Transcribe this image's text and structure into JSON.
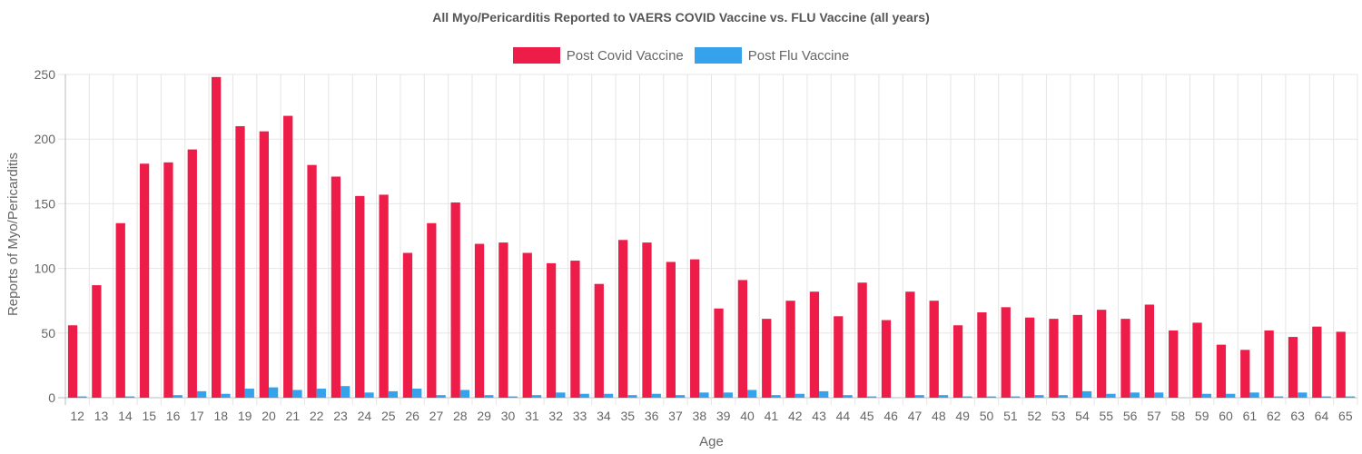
{
  "chart_data": {
    "type": "bar",
    "title": "All Myo/Pericarditis Reported to VAERS COVID Vaccine vs. FLU Vaccine (all years)",
    "xlabel": "Age",
    "ylabel": "Reports of Myo/Pericarditis",
    "ylim": [
      0,
      250
    ],
    "yticks": [
      0,
      50,
      100,
      150,
      200,
      250
    ],
    "grid": true,
    "legend_position": "top-center",
    "categories": [
      "12",
      "13",
      "14",
      "15",
      "16",
      "17",
      "18",
      "19",
      "20",
      "21",
      "22",
      "23",
      "24",
      "25",
      "26",
      "27",
      "28",
      "29",
      "30",
      "31",
      "32",
      "33",
      "34",
      "35",
      "36",
      "37",
      "38",
      "39",
      "40",
      "41",
      "42",
      "43",
      "44",
      "45",
      "46",
      "47",
      "48",
      "49",
      "50",
      "51",
      "52",
      "53",
      "54",
      "55",
      "56",
      "57",
      "58",
      "59",
      "60",
      "61",
      "62",
      "63",
      "64",
      "65"
    ],
    "series": [
      {
        "name": "Post Covid Vaccine",
        "color": "#ee1c49",
        "values": [
          56,
          87,
          135,
          181,
          182,
          192,
          248,
          210,
          206,
          218,
          180,
          171,
          156,
          157,
          112,
          135,
          151,
          119,
          120,
          112,
          104,
          106,
          88,
          122,
          120,
          105,
          107,
          69,
          91,
          61,
          75,
          82,
          63,
          89,
          60,
          82,
          75,
          56,
          66,
          70,
          62,
          61,
          64,
          68,
          61,
          72,
          52,
          58,
          41,
          37,
          52,
          47,
          55,
          51
        ]
      },
      {
        "name": "Post Flu Vaccine",
        "color": "#36a2eb",
        "values": [
          1,
          0,
          1,
          0,
          2,
          5,
          3,
          7,
          8,
          6,
          7,
          9,
          4,
          5,
          7,
          2,
          6,
          2,
          1,
          2,
          4,
          3,
          3,
          2,
          3,
          2,
          4,
          4,
          6,
          2,
          3,
          5,
          2,
          1,
          0,
          2,
          2,
          1,
          1,
          1,
          2,
          2,
          5,
          3,
          4,
          4,
          0,
          3,
          3,
          4,
          1,
          4,
          1,
          1
        ]
      }
    ]
  }
}
